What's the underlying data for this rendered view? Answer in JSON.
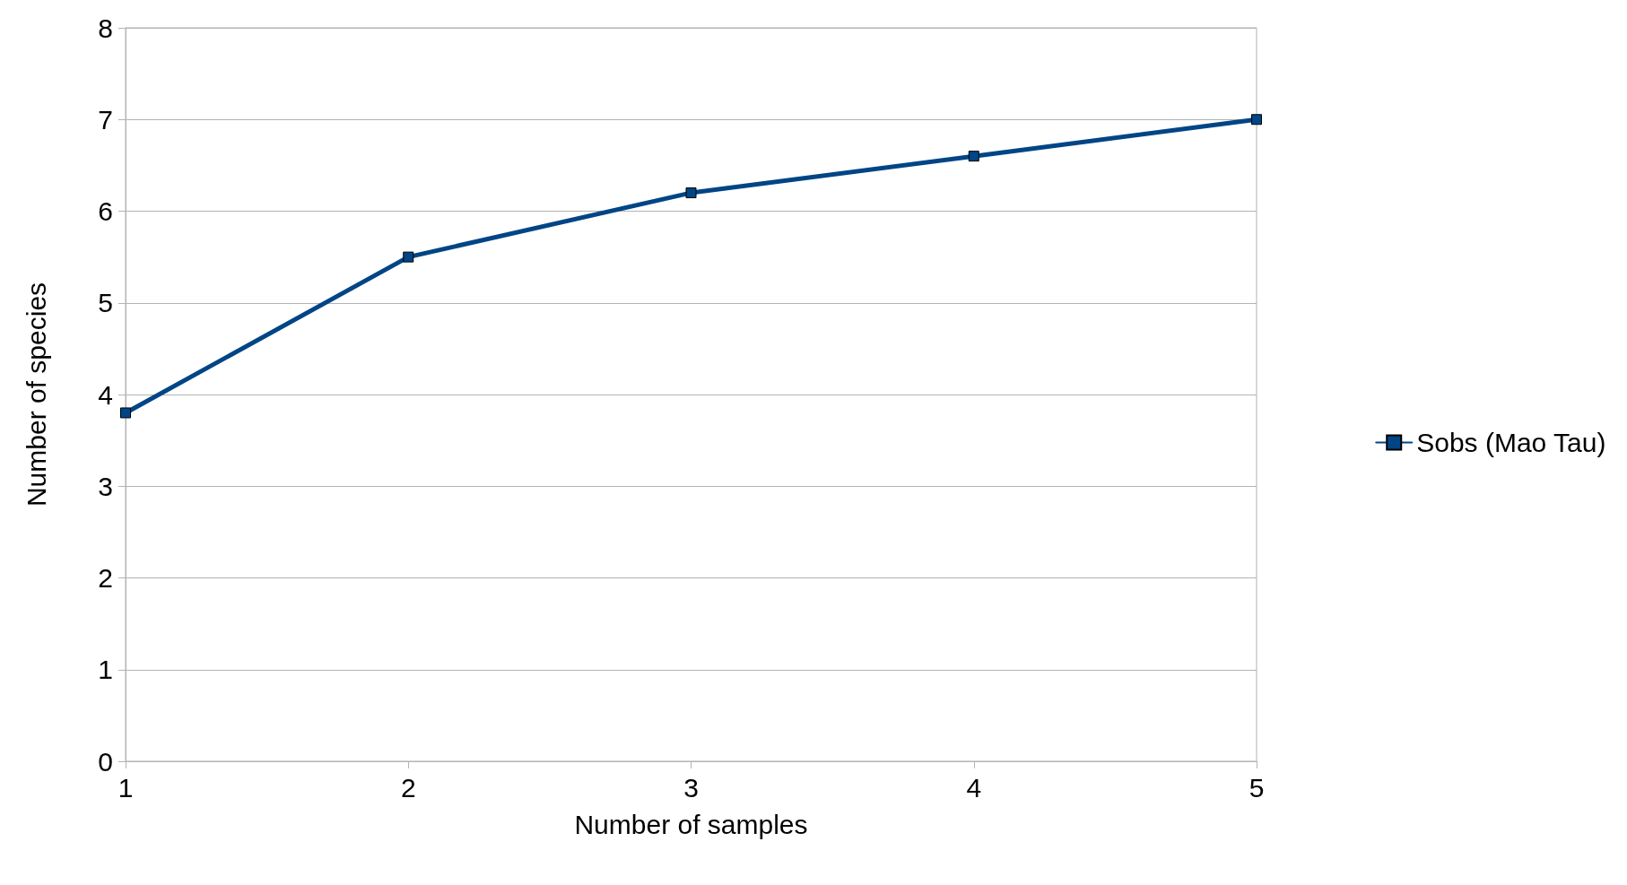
{
  "chart_data": {
    "type": "line",
    "xlabel": "Number of samples",
    "ylabel": "Number of species",
    "x": [
      1,
      2,
      3,
      4,
      5
    ],
    "series": [
      {
        "name": "Sobs (Mao Tau)",
        "color": "#004586",
        "values": [
          3.8,
          5.5,
          6.2,
          6.6,
          7.0
        ]
      }
    ],
    "xlim": [
      1,
      5
    ],
    "xticks": [
      1,
      2,
      3,
      4,
      5
    ],
    "ylim": [
      0,
      8
    ],
    "yticks": [
      0,
      1,
      2,
      3,
      4,
      5,
      6,
      7,
      8
    ],
    "grid": "y",
    "legend": "right",
    "marker": "square",
    "line_style": "solid"
  }
}
